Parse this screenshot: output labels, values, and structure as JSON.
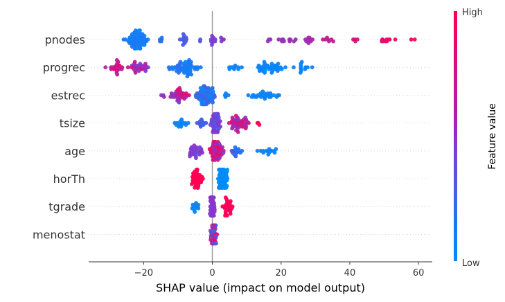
{
  "chart_data": {
    "type": "scatter",
    "subtype": "shap-beeswarm",
    "title": "",
    "xlabel": "SHAP value (impact on model output)",
    "ylabel": "",
    "xlim": [
      -36,
      64
    ],
    "xticks": [
      -20,
      0,
      20,
      40,
      60
    ],
    "xtick_labels": [
      "−20",
      "0",
      "20",
      "40",
      "60"
    ],
    "grid": false,
    "zero_line": true,
    "colorbar": {
      "title": "Feature value",
      "high_label": "High",
      "low_label": "Low",
      "low_color": "#008bfb",
      "mid_color": "#7f3bd4",
      "high_color": "#ff0052"
    },
    "features": [
      {
        "name": "pnodes",
        "clusters": [
          {
            "x": [
              -27,
              -17
            ],
            "n": 70,
            "c": [
              0.0,
              0.15
            ]
          },
          {
            "x": [
              -16,
              -14
            ],
            "n": 5,
            "c": [
              0.1,
              0.2
            ]
          },
          {
            "x": [
              -10,
              -7
            ],
            "n": 12,
            "c": [
              0.25,
              0.35
            ]
          },
          {
            "x": [
              -4,
              -3
            ],
            "n": 2,
            "c": [
              0.3,
              0.35
            ]
          },
          {
            "x": [
              -1,
              2
            ],
            "n": 10,
            "c": [
              0.45,
              0.5
            ]
          },
          {
            "x": [
              2,
              4
            ],
            "n": 4,
            "c": [
              0.5,
              0.55
            ]
          },
          {
            "x": [
              15,
              18
            ],
            "n": 3,
            "c": [
              0.55,
              0.6
            ]
          },
          {
            "x": [
              18,
              26
            ],
            "n": 10,
            "c": [
              0.55,
              0.65
            ]
          },
          {
            "x": [
              26,
              30
            ],
            "n": 10,
            "c": [
              0.6,
              0.7
            ]
          },
          {
            "x": [
              31,
              37
            ],
            "n": 7,
            "c": [
              0.7,
              0.8
            ]
          },
          {
            "x": [
              40,
              43
            ],
            "n": 4,
            "c": [
              0.8,
              0.85
            ]
          },
          {
            "x": [
              46,
              55
            ],
            "n": 10,
            "c": [
              0.85,
              0.95
            ]
          },
          {
            "x": [
              57,
              59
            ],
            "n": 2,
            "c": [
              0.95,
              1.0
            ]
          }
        ]
      },
      {
        "name": "progrec",
        "clusters": [
          {
            "x": [
              -32,
              -25
            ],
            "n": 22,
            "c": [
              0.6,
              1.0
            ]
          },
          {
            "x": [
              -25,
              -17
            ],
            "n": 32,
            "c": [
              0.45,
              0.95
            ]
          },
          {
            "x": [
              -14,
              -2
            ],
            "n": 55,
            "c": [
              0.0,
              0.2
            ]
          },
          {
            "x": [
              4,
              10
            ],
            "n": 10,
            "c": [
              0.0,
              0.1
            ]
          },
          {
            "x": [
              11,
              22
            ],
            "n": 40,
            "c": [
              0.0,
              0.08
            ]
          },
          {
            "x": [
              23,
              32
            ],
            "n": 12,
            "c": [
              0.0,
              0.08
            ]
          }
        ]
      },
      {
        "name": "estrec",
        "clusters": [
          {
            "x": [
              -16,
              -13
            ],
            "n": 3,
            "c": [
              0.55,
              0.65
            ]
          },
          {
            "x": [
              -14,
              -6
            ],
            "n": 35,
            "c": [
              0.45,
              1.0
            ]
          },
          {
            "x": [
              -6,
              2
            ],
            "n": 70,
            "c": [
              0.0,
              0.3
            ]
          },
          {
            "x": [
              2,
              6
            ],
            "n": 5,
            "c": [
              0.0,
              0.1
            ]
          },
          {
            "x": [
              8,
              22
            ],
            "n": 28,
            "c": [
              0.0,
              0.08
            ]
          }
        ]
      },
      {
        "name": "tsize",
        "clusters": [
          {
            "x": [
              -12,
              -6
            ],
            "n": 15,
            "c": [
              0.0,
              0.1
            ]
          },
          {
            "x": [
              -5,
              -1
            ],
            "n": 12,
            "c": [
              0.1,
              0.35
            ]
          },
          {
            "x": [
              -1,
              3
            ],
            "n": 50,
            "c": [
              0.3,
              0.55
            ]
          },
          {
            "x": [
              3,
              12
            ],
            "n": 45,
            "c": [
              0.55,
              0.95
            ]
          },
          {
            "x": [
              12,
              15
            ],
            "n": 3,
            "c": [
              0.9,
              1.0
            ]
          }
        ]
      },
      {
        "name": "age",
        "clusters": [
          {
            "x": [
              -9,
              -2
            ],
            "n": 30,
            "c": [
              0.4,
              0.6
            ]
          },
          {
            "x": [
              -2,
              4
            ],
            "n": 55,
            "c": [
              0.5,
              1.0
            ]
          },
          {
            "x": [
              4,
              9
            ],
            "n": 15,
            "c": [
              0.1,
              0.35
            ]
          },
          {
            "x": [
              10,
              21
            ],
            "n": 14,
            "c": [
              0.0,
              0.08
            ]
          }
        ]
      },
      {
        "name": "horTh",
        "clusters": [
          {
            "x": [
              -7,
              -2
            ],
            "n": 45,
            "c": [
              1.0,
              1.0
            ]
          },
          {
            "x": [
              1,
              5
            ],
            "n": 70,
            "c": [
              0.0,
              0.0
            ]
          }
        ]
      },
      {
        "name": "tgrade",
        "clusters": [
          {
            "x": [
              -7,
              -3
            ],
            "n": 12,
            "c": [
              0.0,
              0.05
            ]
          },
          {
            "x": [
              -1,
              1
            ],
            "n": 55,
            "c": [
              0.5,
              0.55
            ]
          },
          {
            "x": [
              2,
              7
            ],
            "n": 30,
            "c": [
              0.95,
              1.0
            ]
          }
        ]
      },
      {
        "name": "menostat",
        "clusters": [
          {
            "x": [
              -1,
              2
            ],
            "n": 50,
            "c": [
              0.0,
              1.0
            ]
          }
        ]
      }
    ]
  }
}
